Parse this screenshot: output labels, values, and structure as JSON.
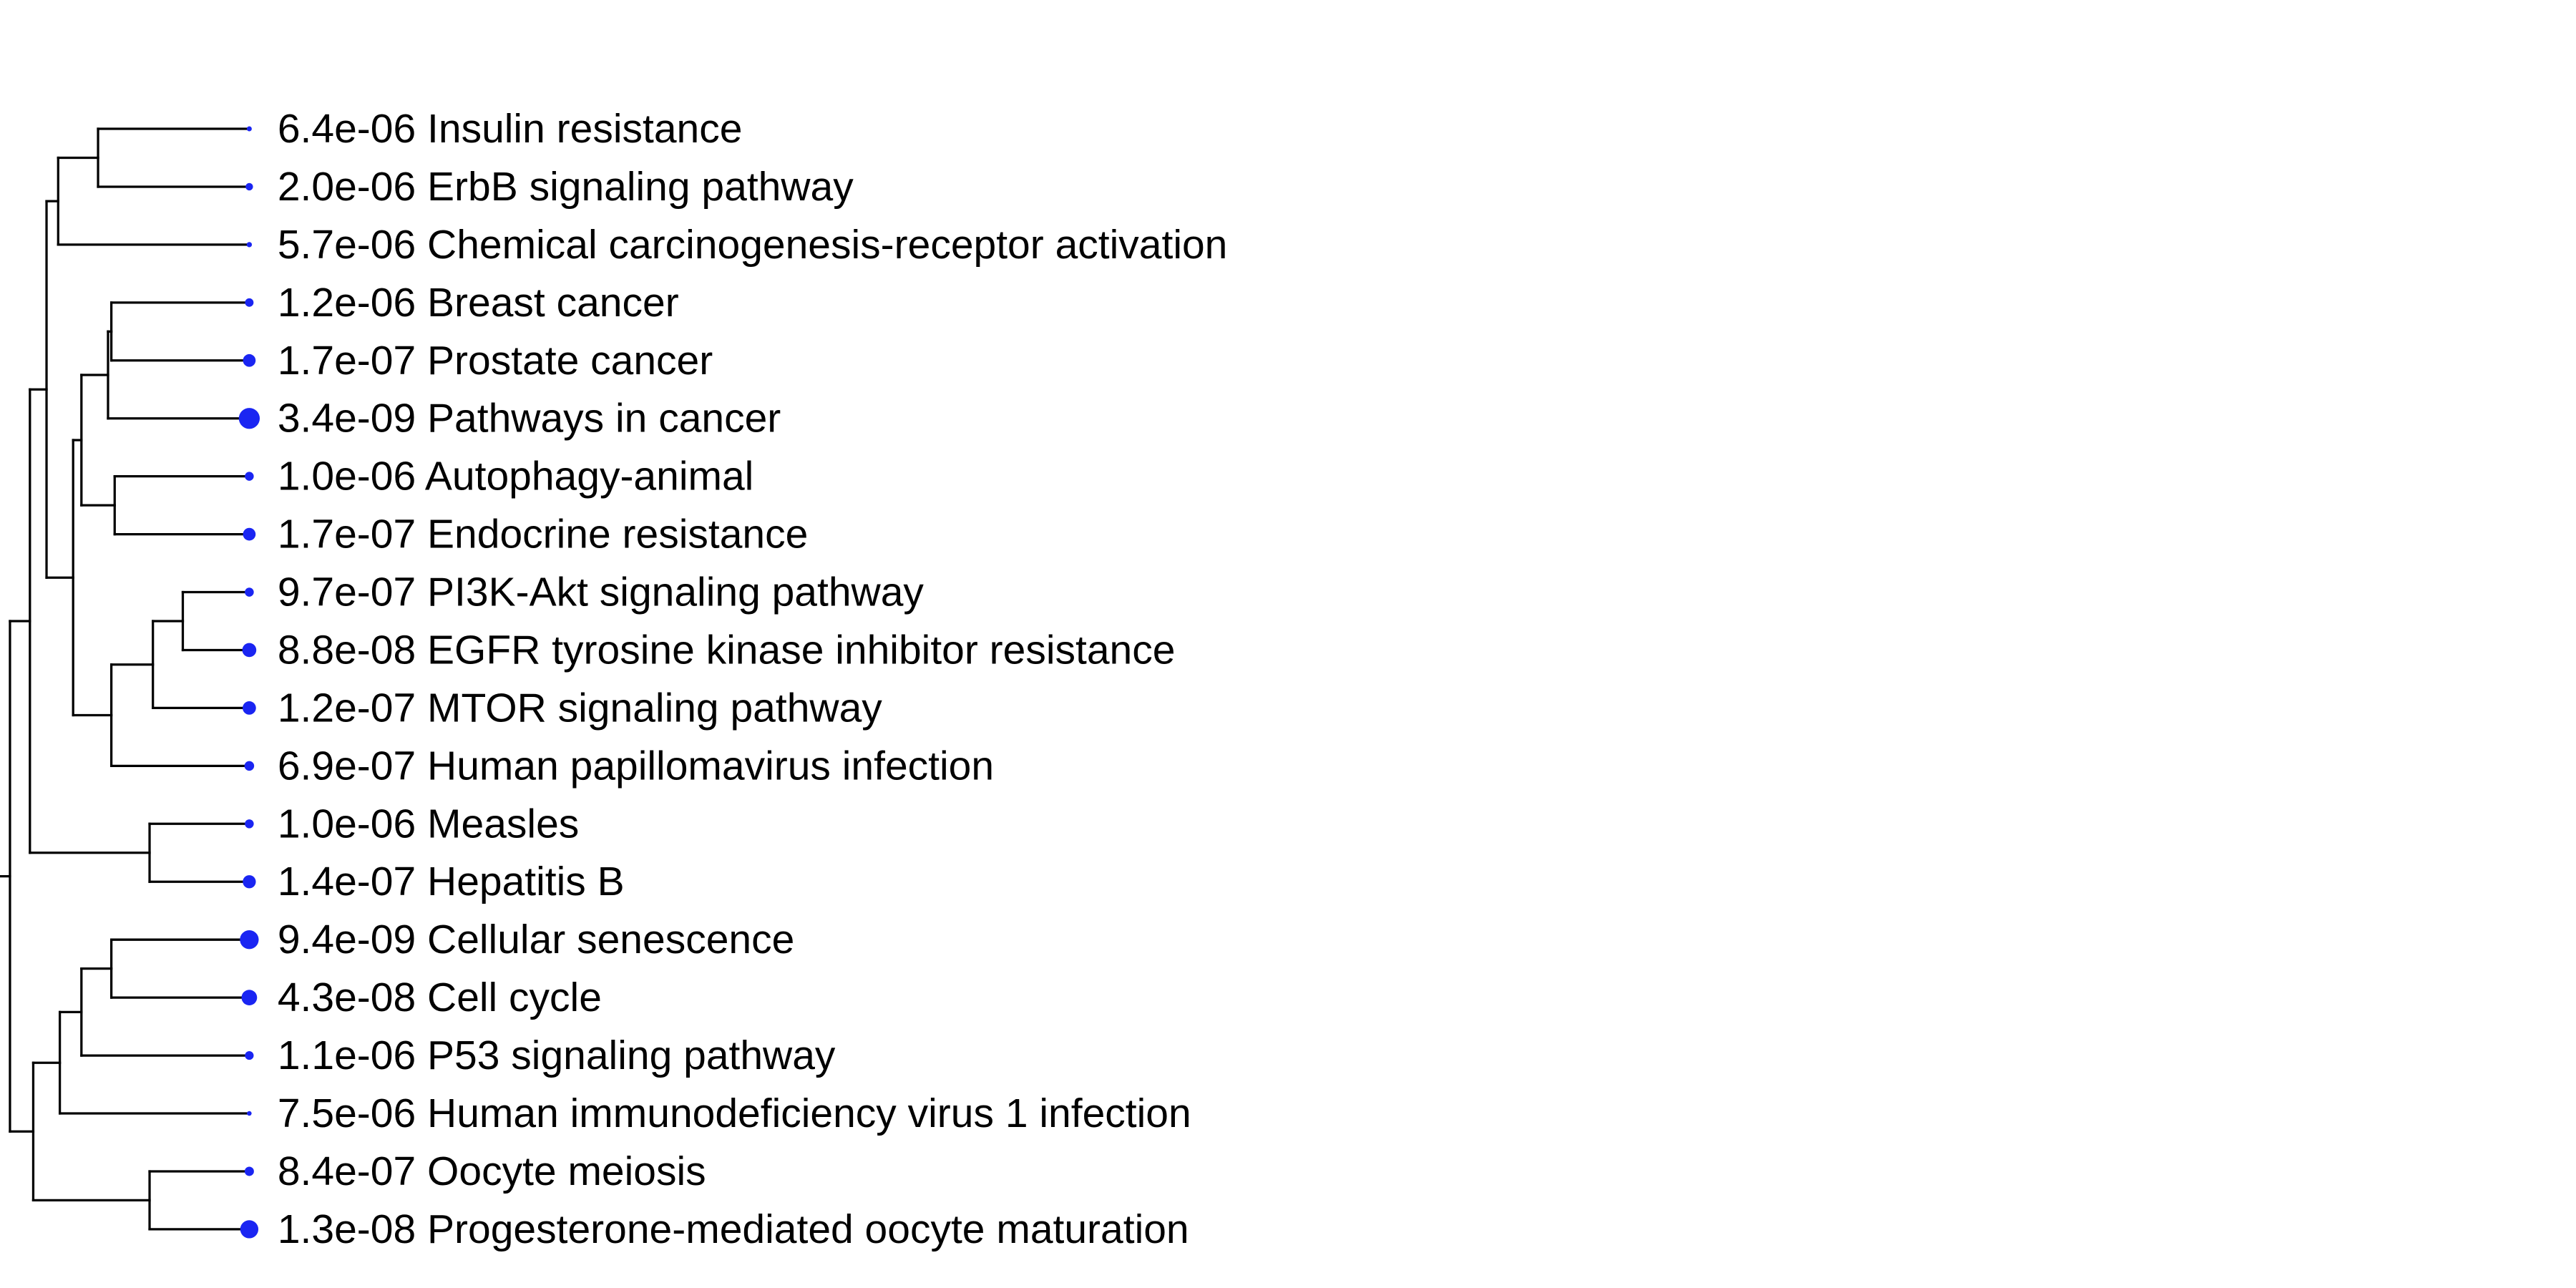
{
  "tree": {
    "line_color": "#000000",
    "dot_color": "#1a25f2",
    "leaves": [
      {
        "pvalue": "6.4e-06",
        "term": "Insulin resistance"
      },
      {
        "pvalue": "2.0e-06",
        "term": "ErbB signaling pathway"
      },
      {
        "pvalue": "5.7e-06",
        "term": "Chemical carcinogenesis-receptor activation"
      },
      {
        "pvalue": "1.2e-06",
        "term": "Breast cancer"
      },
      {
        "pvalue": "1.7e-07",
        "term": "Prostate cancer"
      },
      {
        "pvalue": "3.4e-09",
        "term": "Pathways in cancer"
      },
      {
        "pvalue": "1.0e-06",
        "term": "Autophagy-animal"
      },
      {
        "pvalue": "1.7e-07",
        "term": "Endocrine resistance"
      },
      {
        "pvalue": "9.7e-07",
        "term": "PI3K-Akt signaling pathway"
      },
      {
        "pvalue": "8.8e-08",
        "term": "EGFR tyrosine kinase inhibitor resistance"
      },
      {
        "pvalue": "1.2e-07",
        "term": "MTOR signaling pathway"
      },
      {
        "pvalue": "6.9e-07",
        "term": "Human papillomavirus infection"
      },
      {
        "pvalue": "1.0e-06",
        "term": "Measles"
      },
      {
        "pvalue": "1.4e-07",
        "term": "Hepatitis B"
      },
      {
        "pvalue": "9.4e-09",
        "term": "Cellular senescence"
      },
      {
        "pvalue": "4.3e-08",
        "term": "Cell cycle"
      },
      {
        "pvalue": "1.1e-06",
        "term": "P53 signaling pathway"
      },
      {
        "pvalue": "7.5e-06",
        "term": "Human immunodeficiency virus 1 infection"
      },
      {
        "pvalue": "8.4e-07",
        "term": "Oocyte meiosis"
      },
      {
        "pvalue": "1.3e-08",
        "term": "Progesterone-mediated oocyte maturation"
      }
    ]
  }
}
